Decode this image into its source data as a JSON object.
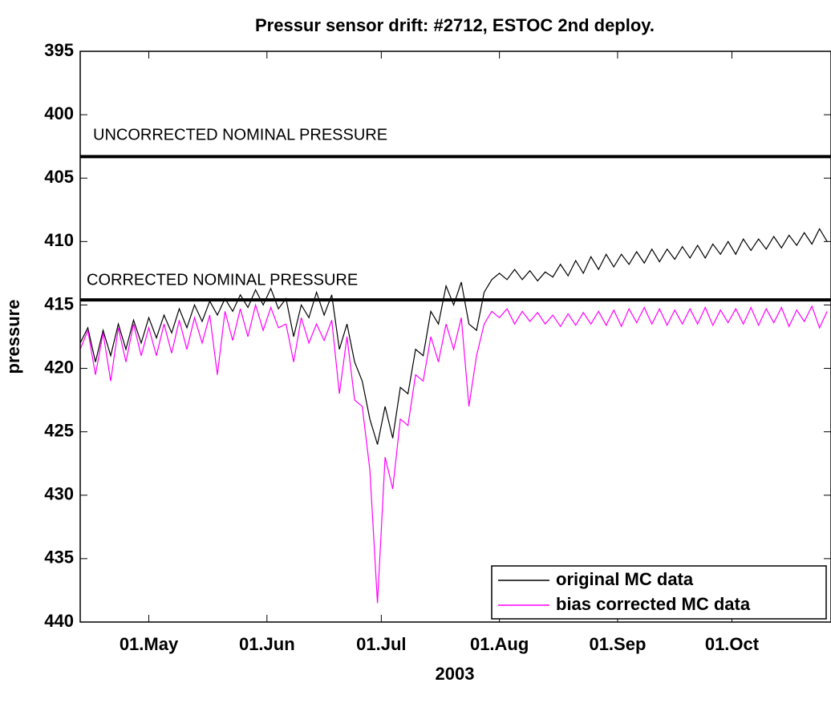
{
  "chart_data": {
    "type": "line",
    "title": "Pressur sensor drift: #2712, ESTOC 2nd deploy.",
    "xlabel": "2003",
    "ylabel": "pressure",
    "xlim": [
      103,
      300
    ],
    "xticks": [
      {
        "value": 121,
        "label": "01.May"
      },
      {
        "value": 152,
        "label": "01.Jun"
      },
      {
        "value": 182,
        "label": "01.Jul"
      },
      {
        "value": 213,
        "label": "01.Aug"
      },
      {
        "value": 244,
        "label": "01.Sep"
      },
      {
        "value": 274,
        "label": "01.Oct"
      }
    ],
    "ylim": [
      395,
      440
    ],
    "y_reversed": true,
    "yticks": [
      395,
      400,
      405,
      410,
      415,
      420,
      425,
      430,
      435,
      440
    ],
    "legend": "lower right",
    "hlines": [
      {
        "value": 403.3,
        "label": "UNCORRECTED NOMINAL PRESSURE"
      },
      {
        "value": 414.6,
        "label": "CORRECTED NOMINAL PRESSURE"
      }
    ],
    "x": [
      103,
      105,
      107,
      109,
      111,
      113,
      115,
      117,
      119,
      121,
      123,
      125,
      127,
      129,
      131,
      133,
      135,
      137,
      139,
      141,
      143,
      145,
      147,
      149,
      151,
      153,
      155,
      157,
      159,
      161,
      163,
      165,
      167,
      169,
      171,
      173,
      175,
      177,
      179,
      181,
      183,
      185,
      187,
      189,
      191,
      193,
      195,
      197,
      199,
      201,
      203,
      205,
      207,
      209,
      211,
      213,
      215,
      217,
      219,
      221,
      223,
      225,
      227,
      229,
      231,
      233,
      235,
      237,
      239,
      241,
      243,
      245,
      247,
      249,
      251,
      253,
      255,
      257,
      259,
      261,
      263,
      265,
      267,
      269,
      271,
      273,
      275,
      277,
      279,
      281,
      283,
      285,
      287,
      289,
      291,
      293,
      295,
      297,
      299
    ],
    "series": [
      {
        "name": "original MC data",
        "color": "#000000",
        "values": [
          418.0,
          416.8,
          419.5,
          417.0,
          419.0,
          416.5,
          418.5,
          416.2,
          418.0,
          416.0,
          417.6,
          415.8,
          417.2,
          415.3,
          416.8,
          415.0,
          416.3,
          414.7,
          415.8,
          414.5,
          415.5,
          414.2,
          415.2,
          413.8,
          415.0,
          413.7,
          415.3,
          414.5,
          417.5,
          415.0,
          416.0,
          414.0,
          415.8,
          414.2,
          418.5,
          416.5,
          419.5,
          421.0,
          424.0,
          426.0,
          423.0,
          425.5,
          421.5,
          422.0,
          418.5,
          419.0,
          415.5,
          416.5,
          413.5,
          415.0,
          413.2,
          416.5,
          417.0,
          414.0,
          413.0,
          412.5,
          413.0,
          412.2,
          413.0,
          412.3,
          413.1,
          412.4,
          412.8,
          411.8,
          412.7,
          411.5,
          412.5,
          411.2,
          412.2,
          411.0,
          412.0,
          411.0,
          411.8,
          410.8,
          411.7,
          410.6,
          411.6,
          410.6,
          411.4,
          410.4,
          411.3,
          410.3,
          411.3,
          410.2,
          411.0,
          410.0,
          411.0,
          409.8,
          410.7,
          409.8,
          410.6,
          409.6,
          410.5,
          409.5,
          410.3,
          409.3,
          410.2,
          409.0,
          410.0
        ]
      },
      {
        "name": "bias corrected MC data",
        "color": "#ff00ff",
        "values": [
          418.5,
          417.0,
          420.5,
          417.2,
          421.0,
          416.8,
          419.5,
          416.5,
          419.0,
          416.8,
          419.0,
          416.5,
          418.8,
          416.2,
          418.5,
          416.0,
          418.0,
          415.8,
          420.5,
          415.5,
          417.8,
          415.3,
          417.5,
          415.0,
          417.0,
          415.2,
          416.8,
          416.5,
          419.5,
          416.0,
          418.0,
          416.5,
          417.8,
          416.2,
          422.0,
          417.5,
          422.5,
          423.0,
          428.0,
          438.5,
          427.0,
          429.5,
          424.0,
          424.5,
          420.5,
          421.0,
          417.5,
          419.5,
          416.5,
          418.5,
          416.0,
          423.0,
          419.0,
          416.5,
          415.5,
          416.0,
          415.3,
          416.5,
          415.5,
          416.3,
          415.6,
          416.5,
          415.8,
          416.7,
          415.7,
          416.6,
          415.6,
          416.5,
          415.5,
          416.6,
          415.4,
          416.7,
          415.3,
          416.4,
          415.2,
          416.5,
          415.3,
          416.6,
          415.4,
          416.5,
          415.3,
          416.5,
          415.2,
          416.6,
          415.4,
          416.4,
          415.3,
          416.5,
          415.2,
          416.6,
          415.3,
          416.4,
          415.2,
          416.7,
          415.4,
          416.3,
          415.1,
          416.8,
          415.5
        ]
      }
    ]
  }
}
